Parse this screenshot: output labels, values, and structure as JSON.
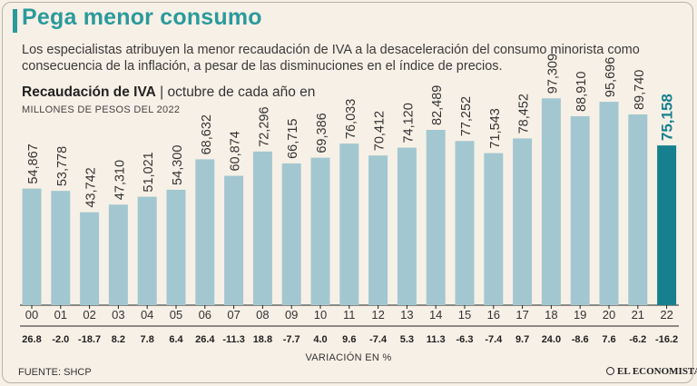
{
  "header": {
    "title": "Pega menor consumo",
    "subtitle": "Los especialistas atribuyen la menor recaudación de IVA a la desaceleración del consumo minorista como consecuencia de la inflación, a pesar de las disminuciones en el índice de precios.",
    "chart_title_bold": "Recaudación de IVA",
    "chart_title_rest": " | octubre de cada año en",
    "units": "MILLONES DE PESOS DEL 2022"
  },
  "footer": {
    "source": "FUENTE: SHCP",
    "brand": "EL ECONOMISTA"
  },
  "colors": {
    "accent": "#2a9a9c",
    "bar": "#a3c7d0",
    "highlight_bar": "#16808e"
  },
  "chart_data": {
    "type": "bar",
    "categories": [
      "00",
      "01",
      "02",
      "03",
      "04",
      "05",
      "06",
      "07",
      "08",
      "09",
      "10",
      "11",
      "12",
      "13",
      "14",
      "15",
      "16",
      "17",
      "18",
      "19",
      "20",
      "21",
      "22"
    ],
    "values": [
      54867,
      53778,
      43742,
      47310,
      51021,
      54300,
      68632,
      60874,
      72296,
      66715,
      69386,
      76033,
      70412,
      74120,
      82489,
      77252,
      71543,
      78452,
      97309,
      88910,
      95696,
      89740,
      75158
    ],
    "value_labels": [
      "54,867",
      "53,778",
      "43,742",
      "47,310",
      "51,021",
      "54,300",
      "68,632",
      "60,874",
      "72,296",
      "66,715",
      "69,386",
      "76,033",
      "70,412",
      "74,120",
      "82,489",
      "77,252",
      "71,543",
      "78,452",
      "97,309",
      "88,910",
      "95,696",
      "89,740",
      "75,158"
    ],
    "variation": [
      "26.8",
      "-2.0",
      "-18.7",
      "8.2",
      "7.8",
      "6.4",
      "26.4",
      "-11.3",
      "18.8",
      "-7.7",
      "4.0",
      "9.6",
      "-7.4",
      "5.3",
      "11.3",
      "-6.3",
      "-7.4",
      "9.7",
      "24.0",
      "-8.6",
      "7.6",
      "-6.2",
      "-16.2"
    ],
    "variation_label": "VARIACIÓN EN %",
    "highlight_index": 22
  }
}
